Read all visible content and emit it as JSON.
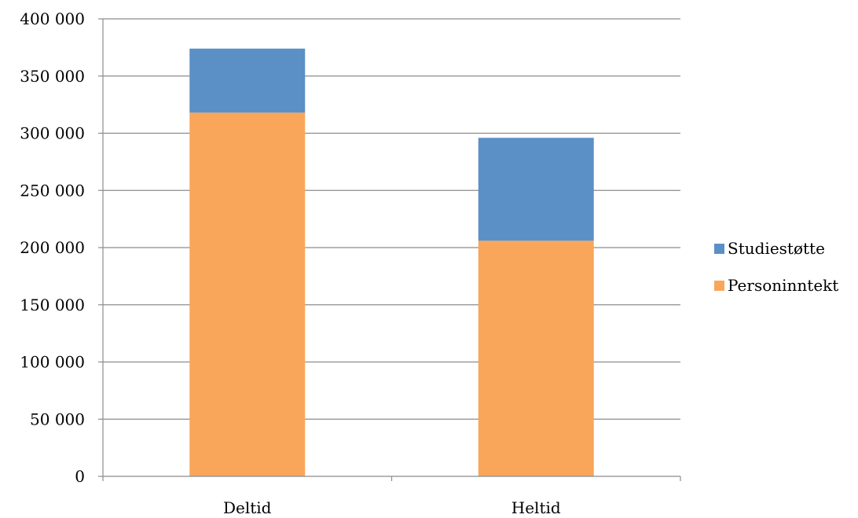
{
  "chart_data": {
    "type": "bar",
    "stacked": true,
    "title": "",
    "xlabel": "",
    "ylabel": "",
    "categories": [
      "Deltid",
      "Heltid"
    ],
    "series": [
      {
        "name": "Personinntekt",
        "color": "#F9A65A",
        "values": [
          318000,
          206000
        ]
      },
      {
        "name": "Studiestøtte",
        "color": "#5B90C6",
        "values": [
          56000,
          90000
        ]
      }
    ],
    "ylim": [
      0,
      400000
    ],
    "yticks": [
      0,
      50000,
      100000,
      150000,
      200000,
      250000,
      300000,
      350000,
      400000
    ],
    "ytick_labels": [
      "0",
      "50 000",
      "100 000",
      "150 000",
      "200 000",
      "250 000",
      "300 000",
      "350 000",
      "400 000"
    ],
    "grid": true,
    "legend_position": "right",
    "legend_order": [
      "Studiestøtte",
      "Personinntekt"
    ]
  }
}
